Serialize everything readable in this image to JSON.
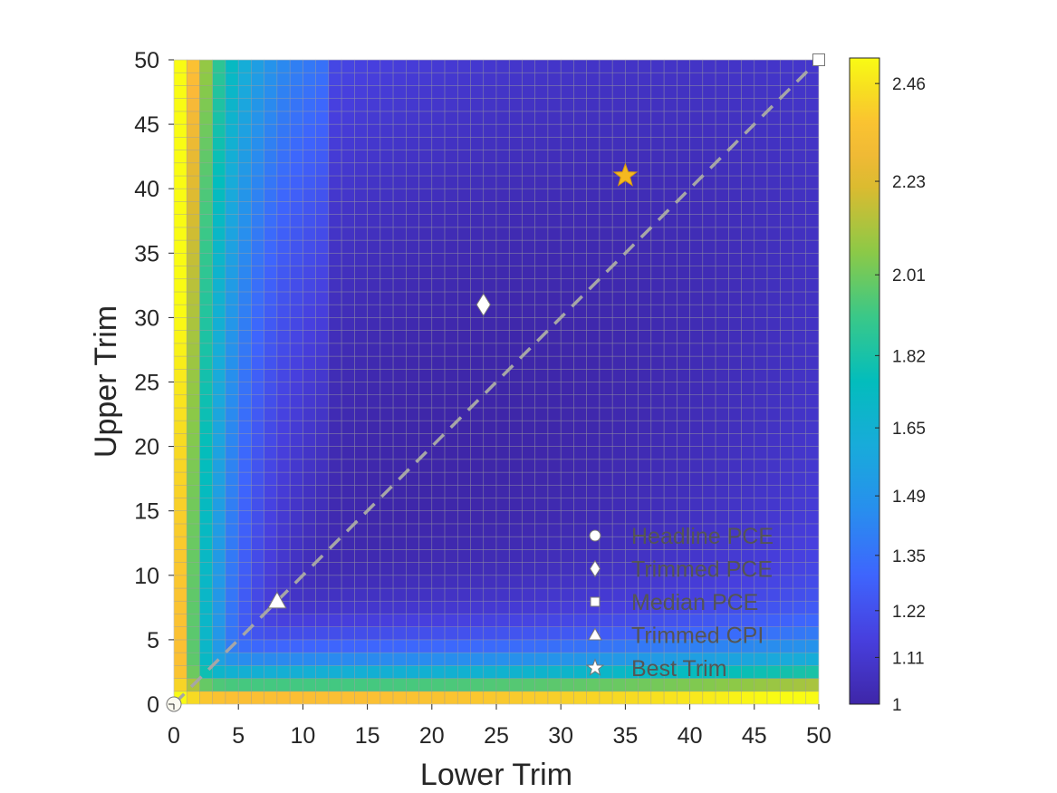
{
  "chart_data": {
    "type": "heatmap",
    "xlabel": "Lower Trim",
    "ylabel": "Upper Trim",
    "xlim": [
      0,
      50
    ],
    "ylim": [
      0,
      50
    ],
    "x_ticks": [
      "0",
      "5",
      "10",
      "15",
      "20",
      "25",
      "30",
      "35",
      "40",
      "45",
      "50"
    ],
    "y_ticks": [
      "0",
      "5",
      "10",
      "15",
      "20",
      "25",
      "30",
      "35",
      "40",
      "45",
      "50"
    ],
    "grid_resolution": 1,
    "value_range": [
      1,
      2.52
    ],
    "colorbar_ticks": [
      "1",
      "1.11",
      "1.22",
      "1.35",
      "1.49",
      "1.65",
      "1.82",
      "2.01",
      "2.23",
      "2.46"
    ],
    "surface_note": "RMSE-type surface: values ~2.5 near zero trim (x=0 or y=0 edges), minimum ~1.0 along the diagonal around x=y=15-25",
    "diagonal_line": {
      "from": [
        0,
        0
      ],
      "to": [
        50,
        50
      ],
      "style": "dashed",
      "color": "#a6a6a6"
    },
    "markers": [
      {
        "name": "Headline PCE",
        "shape": "circle",
        "x": 0,
        "y": 0
      },
      {
        "name": "Trimmed PCE",
        "shape": "diamond",
        "x": 24,
        "y": 31
      },
      {
        "name": "Median PCE",
        "shape": "square",
        "x": 50,
        "y": 50
      },
      {
        "name": "Trimmed CPI",
        "shape": "triangle",
        "x": 8,
        "y": 8
      },
      {
        "name": "Best Trim",
        "shape": "star",
        "x": 35,
        "y": 41
      }
    ],
    "legend": {
      "placement": "bottom-right",
      "entries": [
        "Headline PCE",
        "Trimmed PCE",
        "Median PCE",
        "Trimmed CPI",
        "Best Trim"
      ]
    },
    "colors": {
      "best_trim_marker": "#f5b820",
      "marker_fill": "#ffffff",
      "gridline": "#9a9a9a"
    }
  }
}
